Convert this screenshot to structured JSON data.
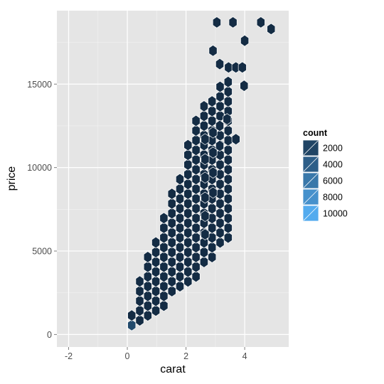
{
  "chart_data": {
    "type": "hexbin",
    "xlabel": "carat",
    "ylabel": "price",
    "xlim": [
      -2.4,
      5.5
    ],
    "ylim": [
      -750,
      19400
    ],
    "x_ticks": [
      -2,
      0,
      2,
      4
    ],
    "x_tick_labels": [
      "-2",
      "0",
      "2",
      "4"
    ],
    "y_ticks": [
      0,
      5000,
      10000,
      15000
    ],
    "y_tick_labels": [
      "0",
      "5000",
      "10000",
      "15000"
    ],
    "grid": true,
    "legend": {
      "title": "count",
      "position": "right",
      "values": [
        2000,
        4000,
        6000,
        8000,
        10000
      ],
      "labels": [
        "2000",
        "4000",
        "6000",
        "8000",
        "10000"
      ]
    },
    "color_scale": {
      "low": "#132B43",
      "high": "#56B1F7",
      "min": 1,
      "max": 10500
    },
    "hex_grid": {
      "x_step": 0.2738,
      "y_step": 583,
      "x_origin": 0.15,
      "y_origin": 557
    },
    "column_ranges": [
      [
        0,
        0,
        1
      ],
      [
        1,
        0,
        4
      ],
      [
        2,
        1,
        7
      ],
      [
        3,
        1,
        8
      ],
      [
        4,
        2,
        11
      ],
      [
        5,
        3,
        13
      ],
      [
        6,
        4,
        15
      ],
      [
        7,
        4,
        18
      ],
      [
        8,
        5,
        21
      ],
      [
        9,
        6,
        22
      ],
      [
        10,
        7,
        23
      ],
      [
        11,
        8,
        24
      ],
      [
        12,
        9,
        25
      ]
    ],
    "extra_bins": [
      {
        "x": 2.92,
        "y": 17000
      },
      {
        "x": 3.15,
        "y": 16200
      },
      {
        "x": 2.65,
        "y": 11700
      },
      {
        "x": 2.92,
        "y": 12100
      },
      {
        "x": 3.15,
        "y": 12500
      },
      {
        "x": 2.65,
        "y": 10500
      },
      {
        "x": 2.92,
        "y": 10900
      },
      {
        "x": 3.15,
        "y": 11300
      },
      {
        "x": 2.65,
        "y": 9400
      },
      {
        "x": 2.92,
        "y": 9700
      },
      {
        "x": 2.65,
        "y": 8200
      },
      {
        "x": 2.92,
        "y": 8500
      },
      {
        "x": 2.65,
        "y": 7100
      },
      {
        "x": 2.65,
        "y": 6000
      },
      {
        "x": 3.05,
        "y": 18700
      },
      {
        "x": 3.6,
        "y": 18700
      },
      {
        "x": 4.55,
        "y": 18700
      },
      {
        "x": 4.9,
        "y": 18300
      },
      {
        "x": 4.0,
        "y": 17600
      },
      {
        "x": 3.45,
        "y": 16000
      },
      {
        "x": 3.7,
        "y": 16000
      },
      {
        "x": 3.92,
        "y": 16000
      },
      {
        "x": 3.98,
        "y": 14900
      },
      {
        "x": 3.4,
        "y": 12900
      },
      {
        "x": 3.7,
        "y": 11700
      }
    ],
    "bin_counts": [
      {
        "x": 0.32,
        "y": 557,
        "count": 10500
      },
      {
        "x": 0.15,
        "y": 557,
        "count": 2400
      },
      {
        "x": 0.42,
        "y": 1140,
        "count": 2200
      },
      {
        "x": 0.29,
        "y": 1140,
        "count": 1600
      }
    ]
  }
}
